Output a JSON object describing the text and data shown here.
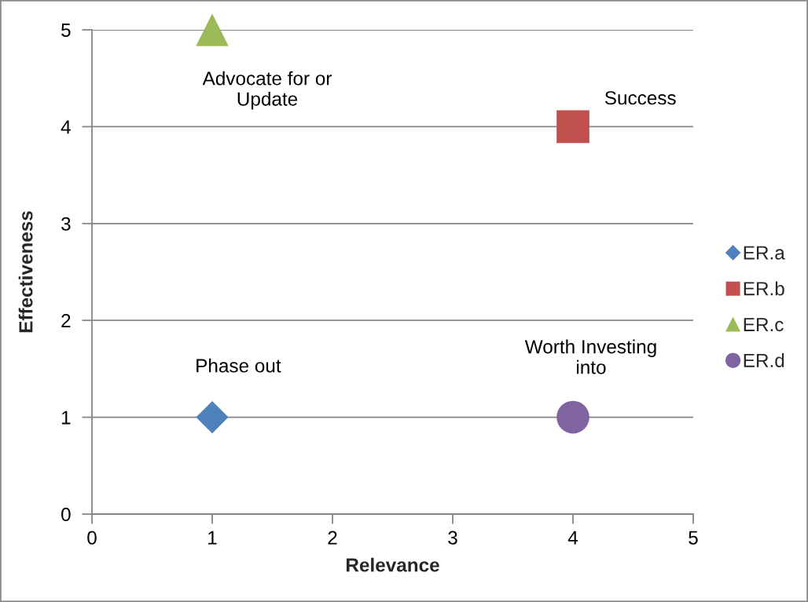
{
  "chart_data": {
    "type": "scatter",
    "xlabel": "Relevance",
    "ylabel": "Effectiveness",
    "xlim": [
      0,
      5
    ],
    "ylim": [
      0,
      5
    ],
    "xticks": [
      0,
      1,
      2,
      3,
      4,
      5
    ],
    "yticks": [
      0,
      1,
      2,
      3,
      4,
      5
    ],
    "grid": "y",
    "legend": "right",
    "x": [
      1,
      4
    ],
    "series": [
      {
        "name": "ER.a",
        "color": "#4f81bd",
        "marker": "diamond",
        "values": [
          1,
          null
        ]
      },
      {
        "name": "ER.b",
        "color": "#c0504d",
        "marker": "square",
        "values": [
          null,
          4
        ]
      },
      {
        "name": "ER.c",
        "color": "#9bbb59",
        "marker": "triangle",
        "values": [
          5,
          null
        ]
      },
      {
        "name": "ER.d",
        "color": "#8064a2",
        "marker": "circle",
        "values": [
          null,
          1
        ]
      }
    ],
    "annotations": [
      "Advocate for or\nUpdate",
      "Success",
      "Phase out",
      "Worth Investing\ninto"
    ]
  }
}
